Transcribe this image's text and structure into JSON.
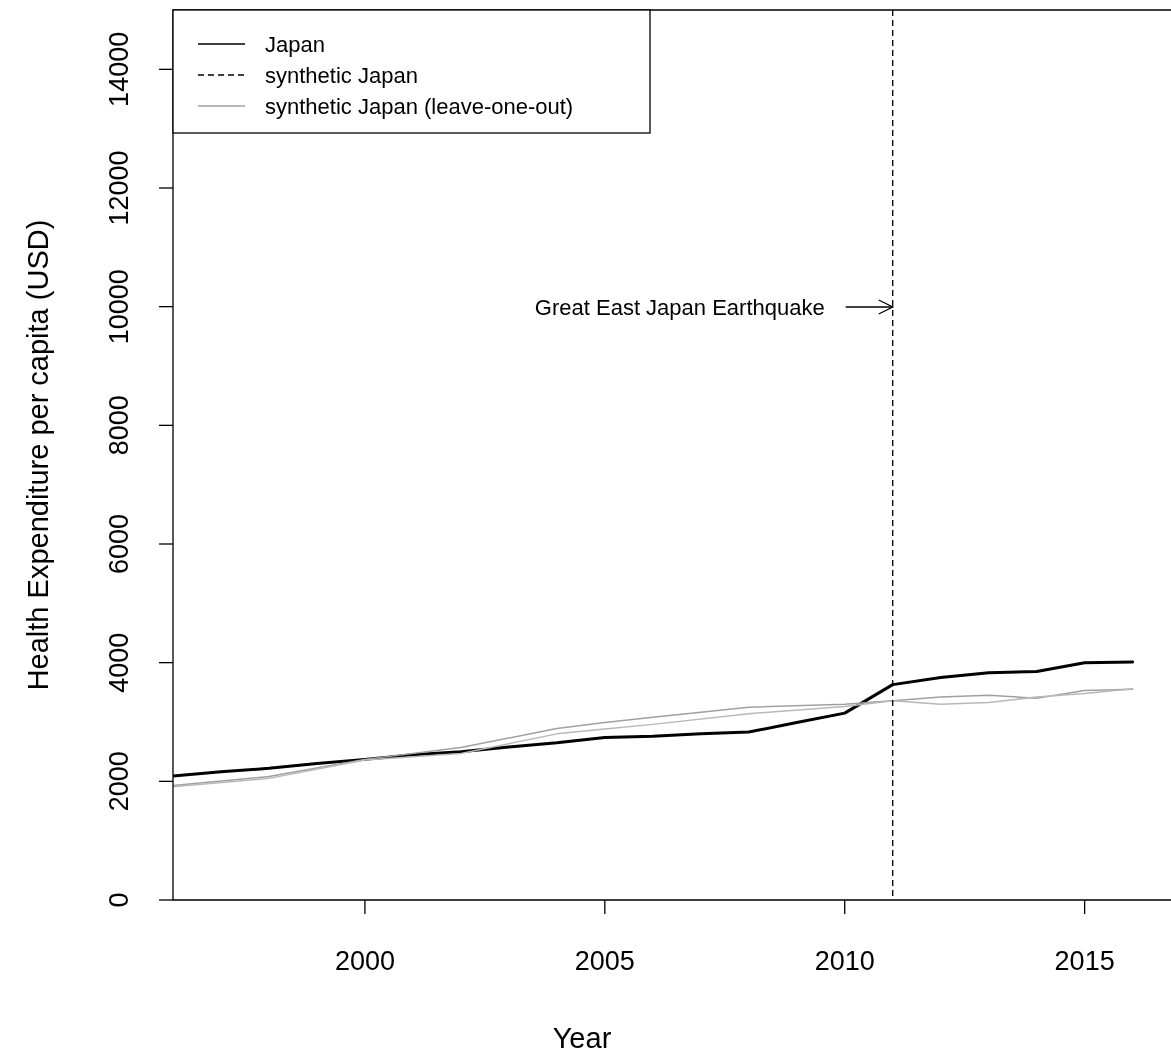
{
  "chart_data": {
    "type": "line",
    "xlabel": "Year",
    "ylabel": "Health Expenditure per capita (USD)",
    "xlim": [
      1996,
      2016.8
    ],
    "ylim": [
      0,
      15000
    ],
    "xticks": [
      2000,
      2005,
      2010,
      2015
    ],
    "yticks": [
      0,
      2000,
      4000,
      6000,
      8000,
      10000,
      12000,
      14000
    ],
    "grid": false,
    "legend": "top left",
    "marker": "none",
    "series": [
      {
        "name": "Japan",
        "color": "#000000",
        "line_style": "solid",
        "x": [
          1996,
          1997,
          1998,
          1999,
          2000,
          2001,
          2002,
          2003,
          2004,
          2005,
          2006,
          2007,
          2008,
          2009,
          2010,
          2011,
          2012,
          2013,
          2014,
          2015,
          2016
        ],
        "values": [
          2090,
          2160,
          2220,
          2300,
          2370,
          2450,
          2500,
          2580,
          2650,
          2740,
          2760,
          2800,
          2830,
          2990,
          3150,
          3630,
          3750,
          3830,
          3850,
          4000,
          4010
        ]
      },
      {
        "name": "synthetic Japan",
        "color": "#000000",
        "line_style": "dashed"
      },
      {
        "name": "synthetic Japan (leave-one-out)",
        "color": "#a0a0a0",
        "line_style": "solid",
        "x": [
          1996,
          1998,
          2000,
          2002,
          2004,
          2005,
          2006,
          2008,
          2010,
          2011,
          2012,
          2013,
          2014,
          2015,
          2016
        ],
        "values": [
          1930,
          2080,
          2370,
          2570,
          2890,
          2990,
          3080,
          3250,
          3300,
          3360,
          3420,
          3450,
          3400,
          3530,
          3550
        ]
      },
      {
        "color": "#b8b8b8",
        "line_style": "solid",
        "x": [
          1996,
          1998,
          2000,
          2002,
          2004,
          2005,
          2006,
          2008,
          2010,
          2011,
          2012,
          2013,
          2014,
          2015,
          2016
        ],
        "values": [
          1910,
          2050,
          2360,
          2470,
          2800,
          2880,
          2960,
          3140,
          3260,
          3360,
          3300,
          3330,
          3420,
          3480,
          3560
        ]
      }
    ],
    "ref_lines": [
      {
        "axis": "x",
        "value": 2011,
        "color": "#000000",
        "line_style": "dashed"
      }
    ],
    "annotations": [
      "Great East Japan Earthquake"
    ]
  }
}
